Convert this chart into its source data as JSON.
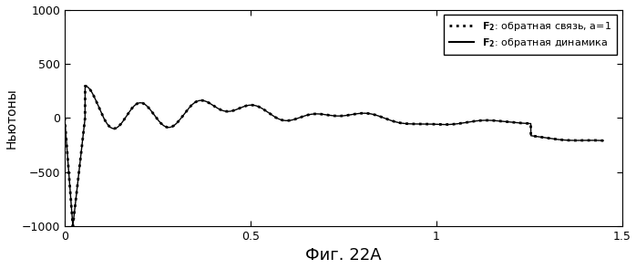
{
  "title": "",
  "xlabel": "Фиг. 22А",
  "ylabel": "Ньютоны",
  "xlim": [
    0,
    1.5
  ],
  "ylim": [
    -1000,
    1000
  ],
  "yticks": [
    -1000,
    -500,
    0,
    500,
    1000
  ],
  "xticks": [
    0,
    0.5,
    1.0,
    1.5
  ],
  "legend_label_dotted": "$\\mathbf{F_2}$: обратная связь, a=1",
  "legend_label_solid": "$\\mathbf{F_2}$: обратная динамика",
  "line_color": "#000000",
  "bg_color": "#ffffff",
  "figsize": [
    6.98,
    2.95
  ],
  "dpi": 100
}
